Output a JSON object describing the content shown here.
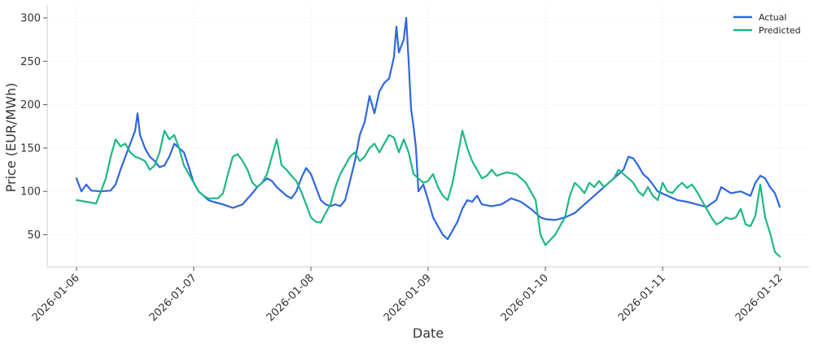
{
  "chart_data": {
    "type": "line",
    "xlabel": "Date",
    "ylabel": "Price (EUR/MWh)",
    "x_ticks": [
      "2026-01-06",
      "2026-01-07",
      "2026-01-08",
      "2026-01-09",
      "2026-01-10",
      "2026-01-11",
      "2026-01-12"
    ],
    "y_ticks": [
      50,
      100,
      150,
      200,
      250,
      300
    ],
    "xlim": [
      "2026-01-05T18:00",
      "2026-01-12T06:00"
    ],
    "ylim": [
      13,
      315
    ],
    "grid": true,
    "legend_position": "top-right",
    "series": [
      {
        "name": "Actual",
        "color": "#3066e0",
        "points": [
          [
            "2026-01-06T00:00",
            115
          ],
          [
            "2026-01-06T01:00",
            100
          ],
          [
            "2026-01-06T02:00",
            108
          ],
          [
            "2026-01-06T03:00",
            101
          ],
          [
            "2026-01-06T05:00",
            100
          ],
          [
            "2026-01-06T07:00",
            101
          ],
          [
            "2026-01-06T08:00",
            108
          ],
          [
            "2026-01-06T09:00",
            125
          ],
          [
            "2026-01-06T10:00",
            140
          ],
          [
            "2026-01-06T11:00",
            155
          ],
          [
            "2026-01-06T12:00",
            170
          ],
          [
            "2026-01-06T12:30",
            190
          ],
          [
            "2026-01-06T13:00",
            165
          ],
          [
            "2026-01-06T14:00",
            150
          ],
          [
            "2026-01-06T15:00",
            140
          ],
          [
            "2026-01-06T16:00",
            135
          ],
          [
            "2026-01-06T17:00",
            128
          ],
          [
            "2026-01-06T18:00",
            130
          ],
          [
            "2026-01-06T19:00",
            140
          ],
          [
            "2026-01-06T20:00",
            155
          ],
          [
            "2026-01-06T21:00",
            150
          ],
          [
            "2026-01-06T22:00",
            145
          ],
          [
            "2026-01-06T23:00",
            128
          ],
          [
            "2026-01-07T00:00",
            110
          ],
          [
            "2026-01-07T01:00",
            100
          ],
          [
            "2026-01-07T02:00",
            95
          ],
          [
            "2026-01-07T03:00",
            90
          ],
          [
            "2026-01-07T04:00",
            88
          ],
          [
            "2026-01-07T06:00",
            85
          ],
          [
            "2026-01-07T08:00",
            81
          ],
          [
            "2026-01-07T10:00",
            85
          ],
          [
            "2026-01-07T12:00",
            98
          ],
          [
            "2026-01-07T13:00",
            105
          ],
          [
            "2026-01-07T14:00",
            110
          ],
          [
            "2026-01-07T15:00",
            115
          ],
          [
            "2026-01-07T16:00",
            112
          ],
          [
            "2026-01-07T17:00",
            105
          ],
          [
            "2026-01-07T18:00",
            100
          ],
          [
            "2026-01-07T19:00",
            95
          ],
          [
            "2026-01-07T20:00",
            92
          ],
          [
            "2026-01-07T21:00",
            100
          ],
          [
            "2026-01-07T22:00",
            115
          ],
          [
            "2026-01-07T23:00",
            127
          ],
          [
            "2026-01-08T00:00",
            120
          ],
          [
            "2026-01-08T01:00",
            105
          ],
          [
            "2026-01-08T02:00",
            90
          ],
          [
            "2026-01-08T03:00",
            85
          ],
          [
            "2026-01-08T04:00",
            83
          ],
          [
            "2026-01-08T05:00",
            85
          ],
          [
            "2026-01-08T06:00",
            83
          ],
          [
            "2026-01-08T07:00",
            90
          ],
          [
            "2026-01-08T08:00",
            112
          ],
          [
            "2026-01-08T09:00",
            135
          ],
          [
            "2026-01-08T10:00",
            165
          ],
          [
            "2026-01-08T11:00",
            180
          ],
          [
            "2026-01-08T12:00",
            210
          ],
          [
            "2026-01-08T13:00",
            190
          ],
          [
            "2026-01-08T14:00",
            215
          ],
          [
            "2026-01-08T15:00",
            225
          ],
          [
            "2026-01-08T16:00",
            230
          ],
          [
            "2026-01-08T17:00",
            255
          ],
          [
            "2026-01-08T17:30",
            290
          ],
          [
            "2026-01-08T18:00",
            260
          ],
          [
            "2026-01-08T19:00",
            275
          ],
          [
            "2026-01-08T19:30",
            300
          ],
          [
            "2026-01-08T20:00",
            250
          ],
          [
            "2026-01-08T20:30",
            195
          ],
          [
            "2026-01-08T21:00",
            175
          ],
          [
            "2026-01-08T21:30",
            150
          ],
          [
            "2026-01-08T22:00",
            100
          ],
          [
            "2026-01-08T23:00",
            108
          ],
          [
            "2026-01-09T00:00",
            90
          ],
          [
            "2026-01-09T01:00",
            70
          ],
          [
            "2026-01-09T02:00",
            60
          ],
          [
            "2026-01-09T03:00",
            50
          ],
          [
            "2026-01-09T04:00",
            45
          ],
          [
            "2026-01-09T05:00",
            55
          ],
          [
            "2026-01-09T06:00",
            65
          ],
          [
            "2026-01-09T07:00",
            80
          ],
          [
            "2026-01-09T08:00",
            90
          ],
          [
            "2026-01-09T09:00",
            88
          ],
          [
            "2026-01-09T10:00",
            95
          ],
          [
            "2026-01-09T11:00",
            85
          ],
          [
            "2026-01-09T13:00",
            83
          ],
          [
            "2026-01-09T15:00",
            85
          ],
          [
            "2026-01-09T17:00",
            92
          ],
          [
            "2026-01-09T19:00",
            88
          ],
          [
            "2026-01-09T21:00",
            80
          ],
          [
            "2026-01-09T23:00",
            70
          ],
          [
            "2026-01-10T00:00",
            68
          ],
          [
            "2026-01-10T02:00",
            67
          ],
          [
            "2026-01-10T04:00",
            70
          ],
          [
            "2026-01-10T06:00",
            75
          ],
          [
            "2026-01-10T08:00",
            85
          ],
          [
            "2026-01-10T10:00",
            95
          ],
          [
            "2026-01-10T12:00",
            105
          ],
          [
            "2026-01-10T14:00",
            115
          ],
          [
            "2026-01-10T16:00",
            125
          ],
          [
            "2026-01-10T17:00",
            140
          ],
          [
            "2026-01-10T18:00",
            138
          ],
          [
            "2026-01-10T19:00",
            130
          ],
          [
            "2026-01-10T20:00",
            120
          ],
          [
            "2026-01-10T21:00",
            115
          ],
          [
            "2026-01-10T22:00",
            108
          ],
          [
            "2026-01-10T23:00",
            100
          ],
          [
            "2026-01-11T01:00",
            95
          ],
          [
            "2026-01-11T03:00",
            90
          ],
          [
            "2026-01-11T05:00",
            88
          ],
          [
            "2026-01-11T07:00",
            85
          ],
          [
            "2026-01-11T09:00",
            82
          ],
          [
            "2026-01-11T11:00",
            90
          ],
          [
            "2026-01-11T12:00",
            105
          ],
          [
            "2026-01-11T14:00",
            98
          ],
          [
            "2026-01-11T16:00",
            100
          ],
          [
            "2026-01-11T18:00",
            95
          ],
          [
            "2026-01-11T19:00",
            110
          ],
          [
            "2026-01-11T20:00",
            118
          ],
          [
            "2026-01-11T21:00",
            115
          ],
          [
            "2026-01-11T22:00",
            105
          ],
          [
            "2026-01-11T23:00",
            98
          ],
          [
            "2026-01-12T00:00",
            82
          ]
        ]
      },
      {
        "name": "Predicted",
        "color": "#1db886",
        "points": [
          [
            "2026-01-06T00:00",
            90
          ],
          [
            "2026-01-06T02:00",
            88
          ],
          [
            "2026-01-06T04:00",
            86
          ],
          [
            "2026-01-06T05:00",
            100
          ],
          [
            "2026-01-06T06:00",
            115
          ],
          [
            "2026-01-06T07:00",
            140
          ],
          [
            "2026-01-06T08:00",
            160
          ],
          [
            "2026-01-06T09:00",
            152
          ],
          [
            "2026-01-06T10:00",
            155
          ],
          [
            "2026-01-06T11:00",
            145
          ],
          [
            "2026-01-06T12:00",
            140
          ],
          [
            "2026-01-06T13:00",
            138
          ],
          [
            "2026-01-06T14:00",
            135
          ],
          [
            "2026-01-06T15:00",
            125
          ],
          [
            "2026-01-06T16:00",
            130
          ],
          [
            "2026-01-06T17:00",
            145
          ],
          [
            "2026-01-06T18:00",
            170
          ],
          [
            "2026-01-06T19:00",
            160
          ],
          [
            "2026-01-06T20:00",
            165
          ],
          [
            "2026-01-06T21:00",
            150
          ],
          [
            "2026-01-06T22:00",
            130
          ],
          [
            "2026-01-06T23:00",
            120
          ],
          [
            "2026-01-07T00:00",
            110
          ],
          [
            "2026-01-07T01:00",
            100
          ],
          [
            "2026-01-07T02:00",
            95
          ],
          [
            "2026-01-07T03:00",
            92
          ],
          [
            "2026-01-07T05:00",
            92
          ],
          [
            "2026-01-07T06:00",
            98
          ],
          [
            "2026-01-07T07:00",
            120
          ],
          [
            "2026-01-07T08:00",
            140
          ],
          [
            "2026-01-07T09:00",
            143
          ],
          [
            "2026-01-07T10:00",
            135
          ],
          [
            "2026-01-07T11:00",
            125
          ],
          [
            "2026-01-07T12:00",
            110
          ],
          [
            "2026-01-07T13:00",
            105
          ],
          [
            "2026-01-07T14:00",
            110
          ],
          [
            "2026-01-07T15:00",
            120
          ],
          [
            "2026-01-07T16:00",
            140
          ],
          [
            "2026-01-07T17:00",
            160
          ],
          [
            "2026-01-07T18:00",
            130
          ],
          [
            "2026-01-07T19:00",
            125
          ],
          [
            "2026-01-07T20:00",
            118
          ],
          [
            "2026-01-07T21:00",
            112
          ],
          [
            "2026-01-07T22:00",
            100
          ],
          [
            "2026-01-07T23:00",
            85
          ],
          [
            "2026-01-08T00:00",
            70
          ],
          [
            "2026-01-08T01:00",
            65
          ],
          [
            "2026-01-08T02:00",
            64
          ],
          [
            "2026-01-08T03:00",
            75
          ],
          [
            "2026-01-08T04:00",
            85
          ],
          [
            "2026-01-08T05:00",
            105
          ],
          [
            "2026-01-08T06:00",
            120
          ],
          [
            "2026-01-08T07:00",
            130
          ],
          [
            "2026-01-08T08:00",
            140
          ],
          [
            "2026-01-08T09:00",
            145
          ],
          [
            "2026-01-08T10:00",
            135
          ],
          [
            "2026-01-08T11:00",
            140
          ],
          [
            "2026-01-08T12:00",
            150
          ],
          [
            "2026-01-08T13:00",
            155
          ],
          [
            "2026-01-08T14:00",
            145
          ],
          [
            "2026-01-08T15:00",
            155
          ],
          [
            "2026-01-08T16:00",
            165
          ],
          [
            "2026-01-08T17:00",
            162
          ],
          [
            "2026-01-08T18:00",
            145
          ],
          [
            "2026-01-08T19:00",
            160
          ],
          [
            "2026-01-08T20:00",
            145
          ],
          [
            "2026-01-08T21:00",
            120
          ],
          [
            "2026-01-08T22:00",
            115
          ],
          [
            "2026-01-08T23:00",
            110
          ],
          [
            "2026-01-09T00:00",
            112
          ],
          [
            "2026-01-09T01:00",
            120
          ],
          [
            "2026-01-09T02:00",
            105
          ],
          [
            "2026-01-09T03:00",
            95
          ],
          [
            "2026-01-09T04:00",
            90
          ],
          [
            "2026-01-09T05:00",
            110
          ],
          [
            "2026-01-09T06:00",
            140
          ],
          [
            "2026-01-09T07:00",
            170
          ],
          [
            "2026-01-09T08:00",
            150
          ],
          [
            "2026-01-09T09:00",
            135
          ],
          [
            "2026-01-09T10:00",
            125
          ],
          [
            "2026-01-09T11:00",
            115
          ],
          [
            "2026-01-09T12:00",
            118
          ],
          [
            "2026-01-09T13:00",
            125
          ],
          [
            "2026-01-09T14:00",
            118
          ],
          [
            "2026-01-09T16:00",
            122
          ],
          [
            "2026-01-09T18:00",
            120
          ],
          [
            "2026-01-09T20:00",
            110
          ],
          [
            "2026-01-09T22:00",
            90
          ],
          [
            "2026-01-09T23:00",
            50
          ],
          [
            "2026-01-10T00:00",
            38
          ],
          [
            "2026-01-10T02:00",
            50
          ],
          [
            "2026-01-10T04:00",
            70
          ],
          [
            "2026-01-10T05:00",
            95
          ],
          [
            "2026-01-10T06:00",
            110
          ],
          [
            "2026-01-10T07:00",
            105
          ],
          [
            "2026-01-10T08:00",
            98
          ],
          [
            "2026-01-10T09:00",
            110
          ],
          [
            "2026-01-10T10:00",
            105
          ],
          [
            "2026-01-10T11:00",
            112
          ],
          [
            "2026-01-10T12:00",
            105
          ],
          [
            "2026-01-10T13:00",
            110
          ],
          [
            "2026-01-10T14:00",
            115
          ],
          [
            "2026-01-10T15:00",
            125
          ],
          [
            "2026-01-10T16:00",
            120
          ],
          [
            "2026-01-10T17:00",
            115
          ],
          [
            "2026-01-10T18:00",
            110
          ],
          [
            "2026-01-10T19:00",
            100
          ],
          [
            "2026-01-10T20:00",
            95
          ],
          [
            "2026-01-10T21:00",
            105
          ],
          [
            "2026-01-10T22:00",
            95
          ],
          [
            "2026-01-10T23:00",
            90
          ],
          [
            "2026-01-11T00:00",
            110
          ],
          [
            "2026-01-11T01:00",
            100
          ],
          [
            "2026-01-11T02:00",
            98
          ],
          [
            "2026-01-11T03:00",
            105
          ],
          [
            "2026-01-11T04:00",
            110
          ],
          [
            "2026-01-11T05:00",
            104
          ],
          [
            "2026-01-11T06:00",
            108
          ],
          [
            "2026-01-11T07:00",
            100
          ],
          [
            "2026-01-11T08:00",
            90
          ],
          [
            "2026-01-11T09:00",
            80
          ],
          [
            "2026-01-11T10:00",
            70
          ],
          [
            "2026-01-11T11:00",
            62
          ],
          [
            "2026-01-11T12:00",
            65
          ],
          [
            "2026-01-11T13:00",
            70
          ],
          [
            "2026-01-11T14:00",
            68
          ],
          [
            "2026-01-11T15:00",
            70
          ],
          [
            "2026-01-11T16:00",
            80
          ],
          [
            "2026-01-11T17:00",
            62
          ],
          [
            "2026-01-11T18:00",
            60
          ],
          [
            "2026-01-11T19:00",
            72
          ],
          [
            "2026-01-11T20:00",
            108
          ],
          [
            "2026-01-11T21:00",
            70
          ],
          [
            "2026-01-11T22:00",
            52
          ],
          [
            "2026-01-11T23:00",
            30
          ],
          [
            "2026-01-12T00:00",
            25
          ]
        ]
      }
    ]
  }
}
